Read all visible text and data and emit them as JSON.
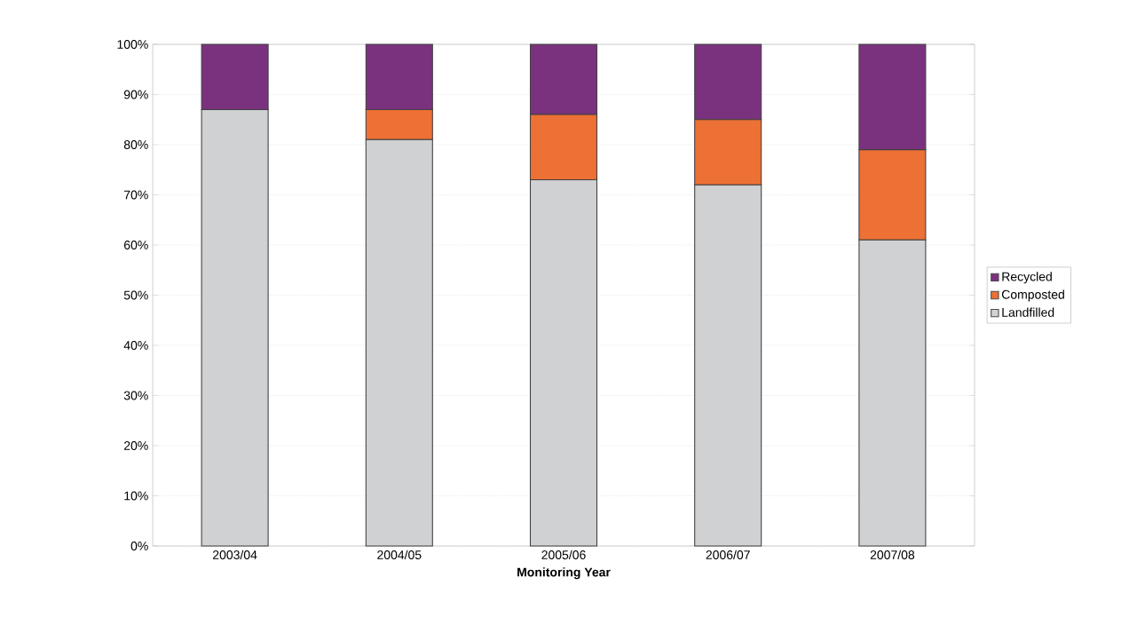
{
  "chart_data": {
    "type": "bar",
    "stacked": true,
    "xlabel": "Monitoring Year",
    "categories": [
      "2003/04",
      "2004/05",
      "2005/06",
      "2006/07",
      "2007/08"
    ],
    "series": [
      {
        "name": "Landfilled",
        "color": "#d0d1d3",
        "values": [
          87,
          81,
          73,
          72,
          61
        ]
      },
      {
        "name": "Composted",
        "color": "#ed7034",
        "values": [
          0,
          6,
          13,
          13,
          18
        ]
      },
      {
        "name": "Recycled",
        "color": "#7b327e",
        "values": [
          13,
          13,
          14,
          15,
          21
        ]
      }
    ],
    "ylim": [
      0,
      100
    ],
    "yticks": [
      {
        "value": 0,
        "label": "0%"
      },
      {
        "value": 10,
        "label": "10%"
      },
      {
        "value": 20,
        "label": "20%"
      },
      {
        "value": 30,
        "label": "30%"
      },
      {
        "value": 40,
        "label": "40%"
      },
      {
        "value": 50,
        "label": "50%"
      },
      {
        "value": 60,
        "label": "60%"
      },
      {
        "value": 70,
        "label": "70%"
      },
      {
        "value": 80,
        "label": "80%"
      },
      {
        "value": 90,
        "label": "90%"
      },
      {
        "value": 100,
        "label": "100%"
      }
    ],
    "grid": "y",
    "legend": "right"
  }
}
